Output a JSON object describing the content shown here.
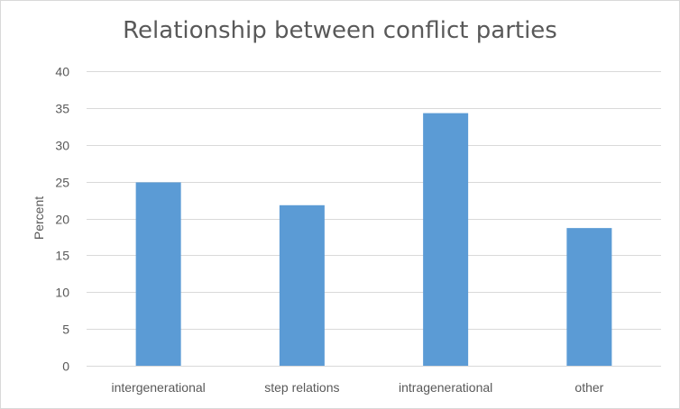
{
  "chart_data": {
    "type": "bar",
    "title": "Relationship between conflict parties",
    "xlabel": "",
    "ylabel": "Percent",
    "categories": [
      "intergenerational",
      "step relations",
      "intragenerational",
      "other"
    ],
    "values": [
      24.9,
      21.8,
      34.3,
      18.7
    ],
    "ylim": [
      0,
      40
    ],
    "yticks": [
      "0",
      "5",
      "10",
      "15",
      "20",
      "25",
      "30",
      "35",
      "40"
    ],
    "grid": true,
    "legend": "none",
    "colors": {
      "bar": "#5b9bd5",
      "grid": "#d9d9d9",
      "text": "#595959"
    }
  }
}
